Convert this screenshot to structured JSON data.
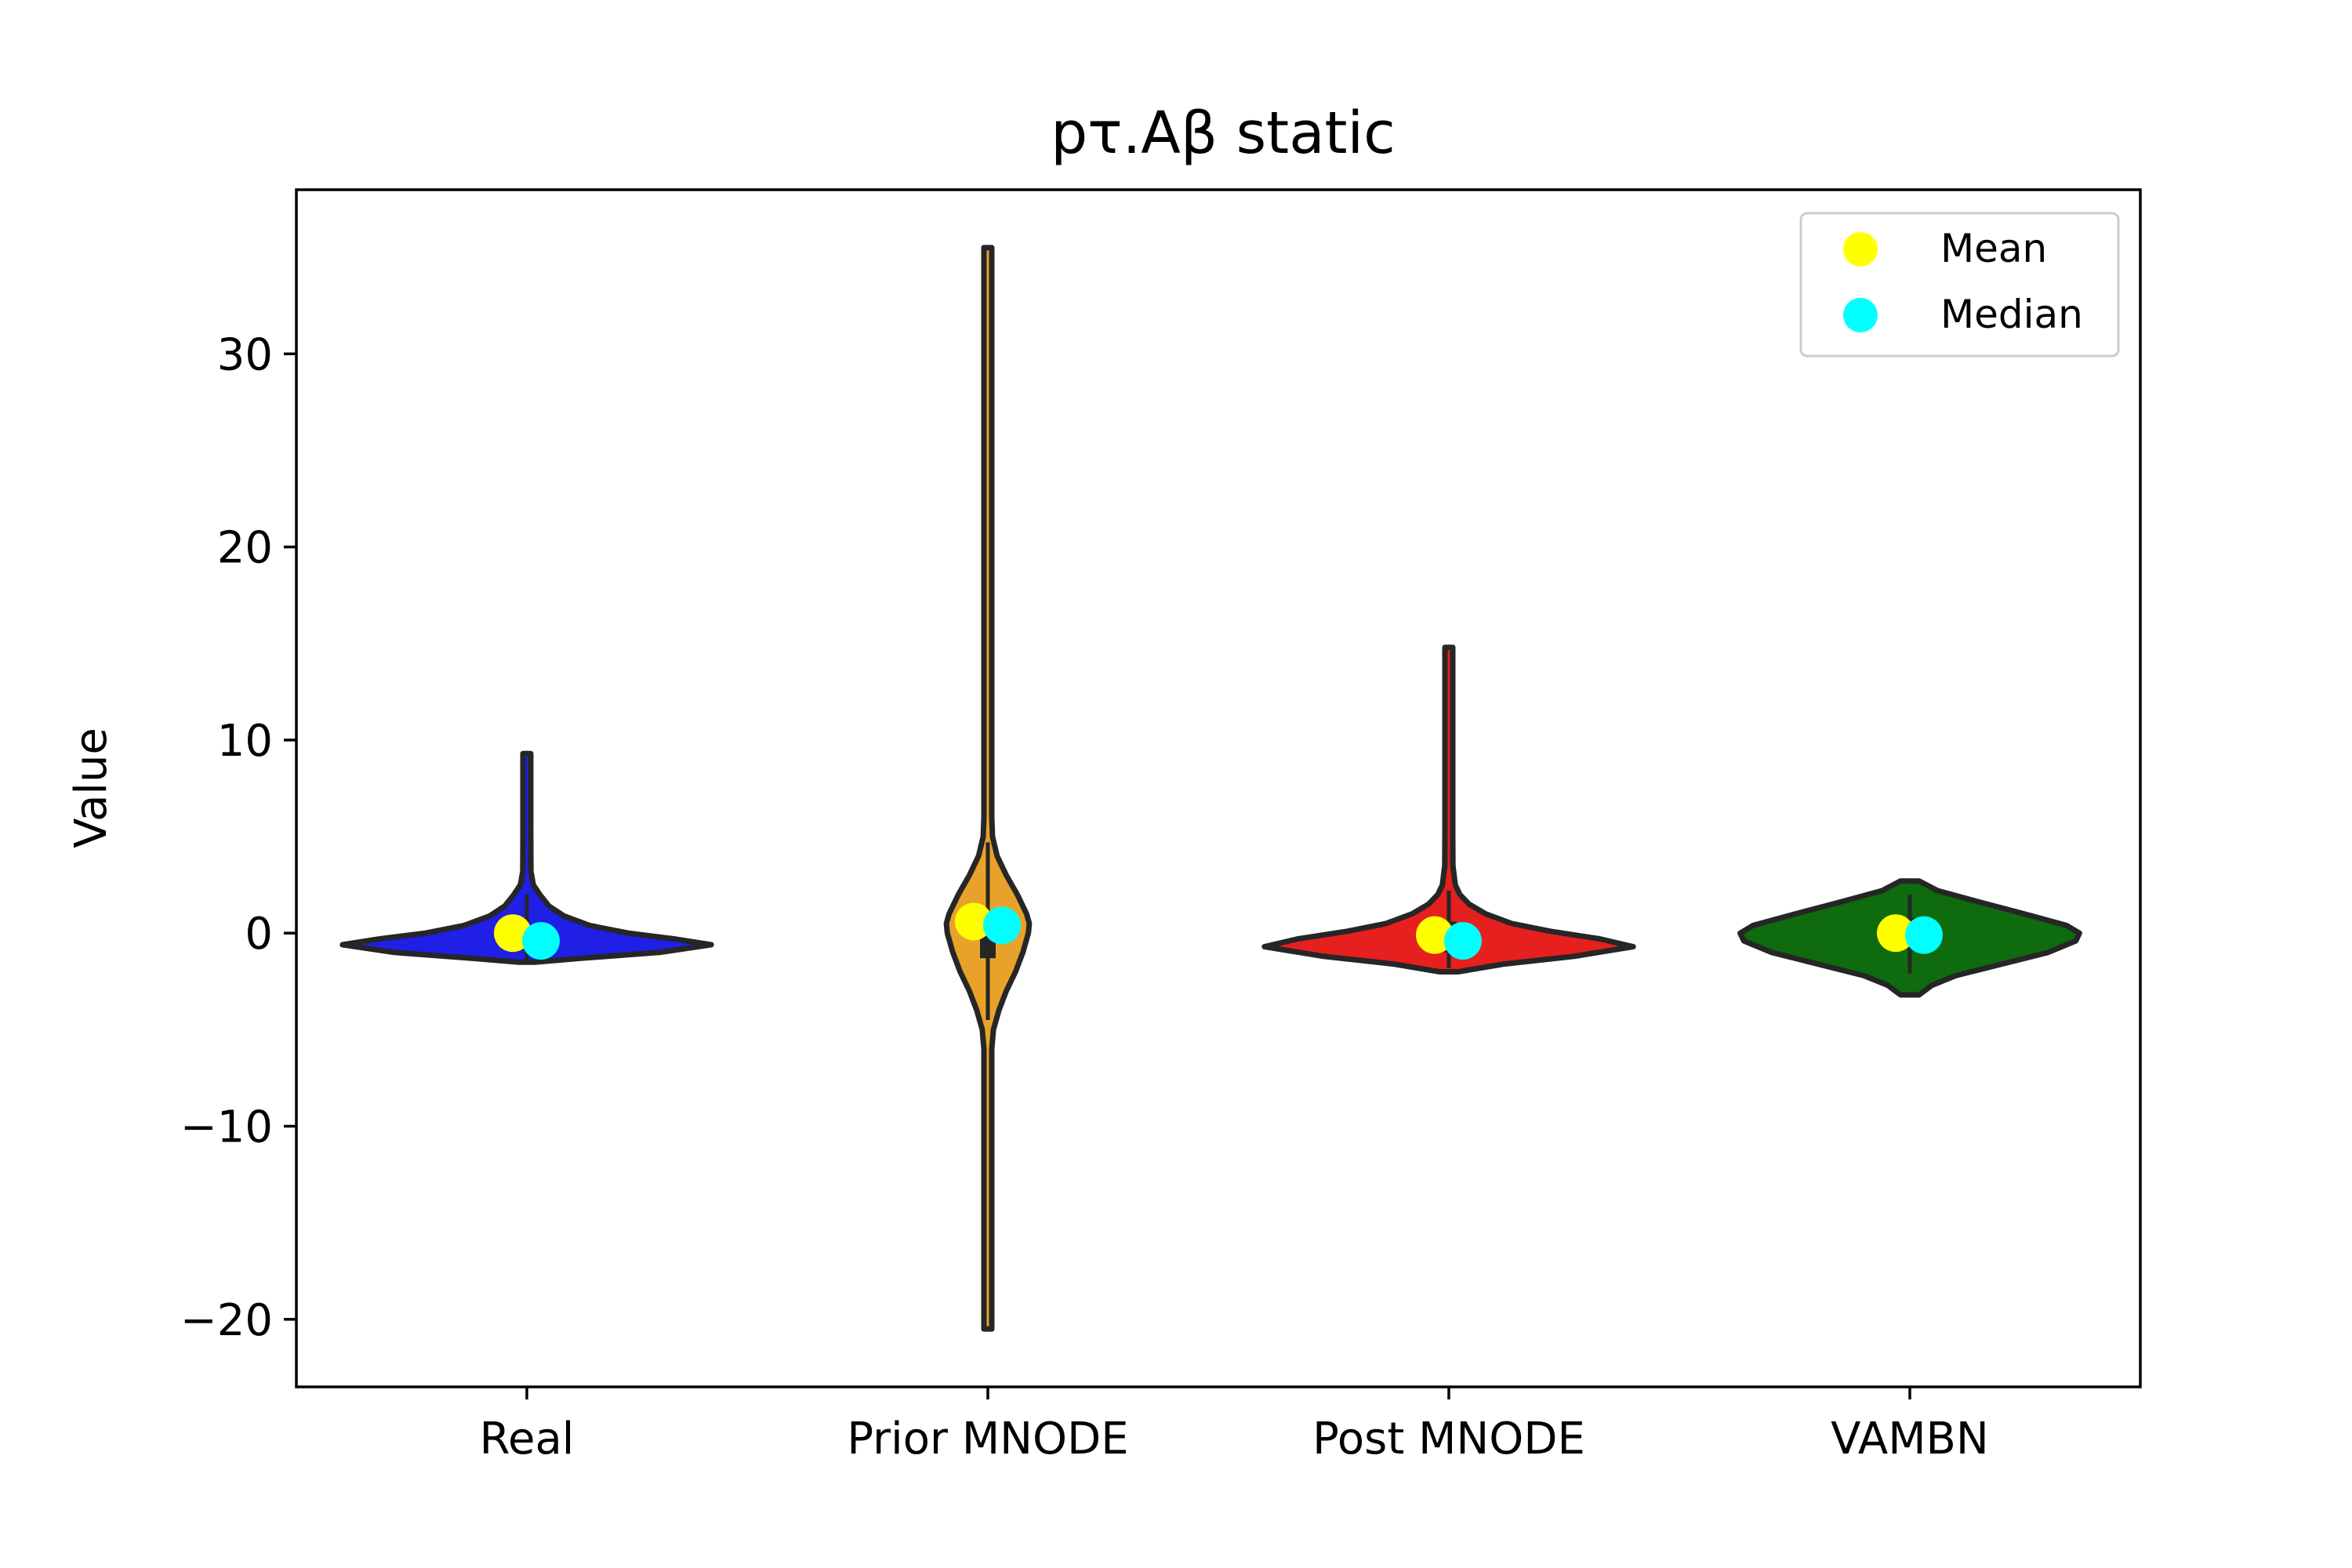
{
  "chart_data": {
    "type": "violin",
    "title": "pτ.Aβ static",
    "xlabel": "",
    "ylabel": "Value",
    "categories": [
      "Real",
      "Prior MNODE",
      "Post MNODE",
      "VAMBN"
    ],
    "ylim": [
      -23.5,
      38.5
    ],
    "yticks": [
      -20,
      -10,
      0,
      10,
      20,
      30
    ],
    "ytick_labels": [
      "−20",
      "−10",
      "0",
      "10",
      "20",
      "30"
    ],
    "grid": false,
    "legend_position": "top-right",
    "legend": [
      {
        "label": "Mean",
        "color": "#ffff00"
      },
      {
        "label": "Median",
        "color": "#00ffff"
      }
    ],
    "series": [
      {
        "category": "Real",
        "color": "#1f1fe6",
        "min": -1.5,
        "max": 9.3,
        "q1": -0.9,
        "q3": 0.4,
        "whisker_low": -1.4,
        "whisker_high": 2.0,
        "mean": 0.0,
        "median": -0.4,
        "profile": [
          [
            -1.5,
            0.05
          ],
          [
            -1.3,
            0.3
          ],
          [
            -1.0,
            0.72
          ],
          [
            -0.6,
            1.0
          ],
          [
            -0.3,
            0.8
          ],
          [
            0.0,
            0.55
          ],
          [
            0.4,
            0.34
          ],
          [
            0.9,
            0.2
          ],
          [
            1.4,
            0.12
          ],
          [
            2.0,
            0.07
          ],
          [
            2.5,
            0.035
          ],
          [
            3.2,
            0.022
          ],
          [
            5.0,
            0.015
          ],
          [
            7.0,
            0.012
          ],
          [
            9.3,
            0.01
          ]
        ]
      },
      {
        "category": "Prior MNODE",
        "color": "#e8a22a",
        "min": -20.5,
        "max": 35.5,
        "q1": -1.3,
        "q3": 1.1,
        "whisker_low": -4.5,
        "whisker_high": 4.7,
        "mean": 0.6,
        "median": 0.4,
        "profile": [
          [
            -20.5,
            0.012
          ],
          [
            -15,
            0.013
          ],
          [
            -10,
            0.014
          ],
          [
            -6,
            0.02
          ],
          [
            -5,
            0.03
          ],
          [
            -4,
            0.06
          ],
          [
            -3,
            0.1
          ],
          [
            -2,
            0.15
          ],
          [
            -1,
            0.19
          ],
          [
            0,
            0.22
          ],
          [
            0.5,
            0.225
          ],
          [
            1,
            0.21
          ],
          [
            2,
            0.16
          ],
          [
            3,
            0.1
          ],
          [
            4,
            0.05
          ],
          [
            5,
            0.025
          ],
          [
            6,
            0.016
          ],
          [
            10,
            0.013
          ],
          [
            18,
            0.013
          ],
          [
            30,
            0.012
          ],
          [
            35.5,
            0.01
          ]
        ]
      },
      {
        "category": "Post MNODE",
        "color": "#e61f1f",
        "min": -2.0,
        "max": 14.8,
        "q1": -1.0,
        "q3": 0.6,
        "whisker_low": -1.8,
        "whisker_high": 2.2,
        "mean": -0.1,
        "median": -0.4,
        "profile": [
          [
            -2.0,
            0.05
          ],
          [
            -1.6,
            0.3
          ],
          [
            -1.2,
            0.68
          ],
          [
            -0.7,
            1.0
          ],
          [
            -0.3,
            0.82
          ],
          [
            0.1,
            0.55
          ],
          [
            0.5,
            0.34
          ],
          [
            1.0,
            0.2
          ],
          [
            1.5,
            0.11
          ],
          [
            2.0,
            0.06
          ],
          [
            2.5,
            0.035
          ],
          [
            3.5,
            0.022
          ],
          [
            5.0,
            0.018
          ],
          [
            8.0,
            0.013
          ],
          [
            12.0,
            0.012
          ],
          [
            14.8,
            0.01
          ]
        ]
      },
      {
        "category": "VAMBN",
        "color": "#0e6b0e",
        "min": -3.2,
        "max": 2.7,
        "q1": -0.8,
        "q3": 0.8,
        "whisker_low": -2.1,
        "whisker_high": 2.0,
        "mean": 0.0,
        "median": -0.1,
        "profile": [
          [
            -3.2,
            0.05
          ],
          [
            -2.7,
            0.12
          ],
          [
            -2.2,
            0.25
          ],
          [
            -1.6,
            0.5
          ],
          [
            -1.0,
            0.75
          ],
          [
            -0.4,
            0.9
          ],
          [
            0.0,
            0.92
          ],
          [
            0.4,
            0.85
          ],
          [
            1.0,
            0.62
          ],
          [
            1.6,
            0.38
          ],
          [
            2.2,
            0.15
          ],
          [
            2.7,
            0.05
          ]
        ]
      }
    ]
  }
}
